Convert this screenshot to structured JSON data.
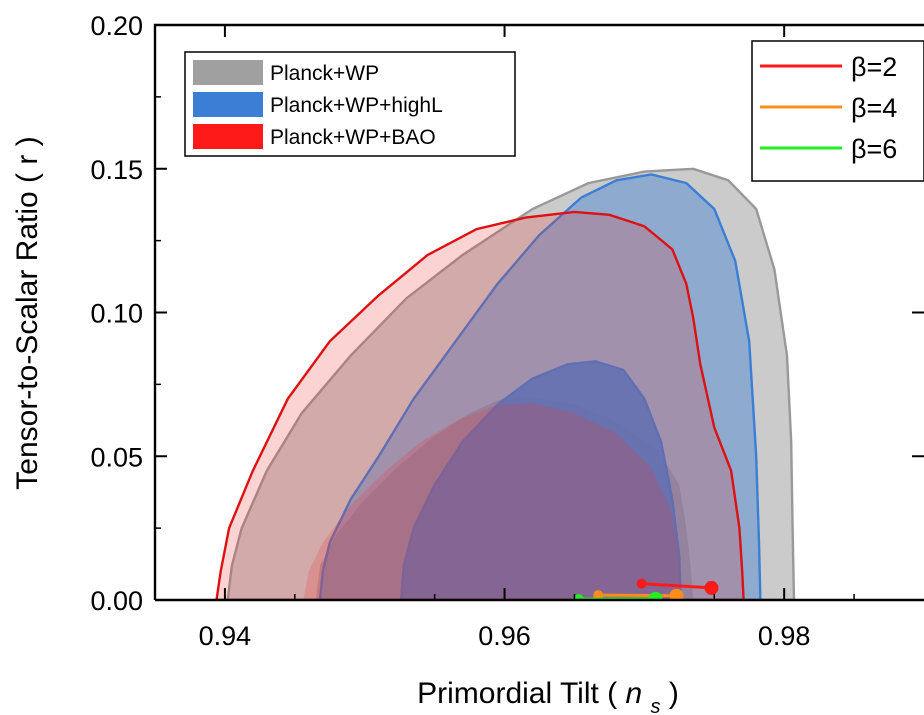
{
  "chart_data": {
    "type": "contour",
    "title": "",
    "xlabel": "Primordial Tilt",
    "xlabel_symbol": "n",
    "xlabel_subscript": "s",
    "ylabel": "Tensor-to-Scalar Ratio",
    "ylabel_symbol": "r",
    "xlim": [
      0.935,
      0.99
    ],
    "ylim": [
      0.0,
      0.2
    ],
    "xticks": [
      "0.94",
      "0.96",
      "0.98"
    ],
    "yticks": [
      "0.00",
      "0.05",
      "0.10",
      "0.15",
      "0.20"
    ],
    "grid": false,
    "contour_legend_position": "top-left",
    "model_legend_position": "top-right",
    "contours": [
      {
        "name": "Planck+WP",
        "color": "#a0a0a0",
        "edge": "#999999",
        "levels": [
          {
            "sigma": 2,
            "opacity": 0.55,
            "points": [
              [
                0.9402,
                0.0
              ],
              [
                0.9405,
                0.012
              ],
              [
                0.9412,
                0.025
              ],
              [
                0.943,
                0.045
              ],
              [
                0.9455,
                0.065
              ],
              [
                0.949,
                0.085
              ],
              [
                0.953,
                0.105
              ],
              [
                0.957,
                0.12
              ],
              [
                0.962,
                0.136
              ],
              [
                0.966,
                0.145
              ],
              [
                0.97,
                0.149
              ],
              [
                0.9735,
                0.15
              ],
              [
                0.976,
                0.146
              ],
              [
                0.978,
                0.136
              ],
              [
                0.9793,
                0.115
              ],
              [
                0.9802,
                0.085
              ],
              [
                0.9805,
                0.055
              ],
              [
                0.9806,
                0.025
              ],
              [
                0.9807,
                0.0
              ]
            ]
          },
          {
            "sigma": 1,
            "opacity": 0.75,
            "points": [
              [
                0.9465,
                0.0
              ],
              [
                0.9468,
                0.012
              ],
              [
                0.948,
                0.023
              ],
              [
                0.95,
                0.035
              ],
              [
                0.9525,
                0.047
              ],
              [
                0.955,
                0.057
              ],
              [
                0.9575,
                0.065
              ],
              [
                0.9598,
                0.07
              ],
              [
                0.962,
                0.0705
              ],
              [
                0.965,
                0.068
              ],
              [
                0.968,
                0.062
              ],
              [
                0.971,
                0.052
              ],
              [
                0.9725,
                0.04
              ],
              [
                0.973,
                0.025
              ],
              [
                0.9733,
                0.012
              ],
              [
                0.9735,
                0.0
              ]
            ]
          }
        ]
      },
      {
        "name": "Planck+WP+highL",
        "color": "#3a7fd5",
        "edge": "#3a7fd5",
        "levels": [
          {
            "sigma": 2,
            "opacity": 0.42,
            "points": [
              [
                0.9468,
                0.0
              ],
              [
                0.947,
                0.01
              ],
              [
                0.9475,
                0.02
              ],
              [
                0.949,
                0.035
              ],
              [
                0.951,
                0.05
              ],
              [
                0.9535,
                0.07
              ],
              [
                0.9565,
                0.09
              ],
              [
                0.9595,
                0.11
              ],
              [
                0.9625,
                0.127
              ],
              [
                0.9655,
                0.14
              ],
              [
                0.968,
                0.146
              ],
              [
                0.9705,
                0.148
              ],
              [
                0.973,
                0.145
              ],
              [
                0.975,
                0.136
              ],
              [
                0.9765,
                0.118
              ],
              [
                0.9775,
                0.09
              ],
              [
                0.978,
                0.05
              ],
              [
                0.9782,
                0.02
              ],
              [
                0.9783,
                0.0
              ]
            ]
          },
          {
            "sigma": 1,
            "opacity": 0.85,
            "points": [
              [
                0.9526,
                0.0
              ],
              [
                0.9528,
                0.012
              ],
              [
                0.9535,
                0.025
              ],
              [
                0.955,
                0.04
              ],
              [
                0.957,
                0.055
              ],
              [
                0.9595,
                0.068
              ],
              [
                0.962,
                0.077
              ],
              [
                0.9645,
                0.082
              ],
              [
                0.9665,
                0.083
              ],
              [
                0.9685,
                0.08
              ],
              [
                0.97,
                0.07
              ],
              [
                0.9712,
                0.055
              ],
              [
                0.972,
                0.035
              ],
              [
                0.9725,
                0.015
              ],
              [
                0.9726,
                0.0
              ]
            ]
          }
        ]
      },
      {
        "name": "Planck+WP+BAO",
        "color": "#ee3535",
        "edge": "#dd1111",
        "levels": [
          {
            "sigma": 2,
            "opacity": 0.22,
            "points": [
              [
                0.9394,
                0.0
              ],
              [
                0.9397,
                0.01
              ],
              [
                0.9403,
                0.025
              ],
              [
                0.942,
                0.045
              ],
              [
                0.9445,
                0.07
              ],
              [
                0.9475,
                0.09
              ],
              [
                0.951,
                0.106
              ],
              [
                0.9545,
                0.12
              ],
              [
                0.958,
                0.129
              ],
              [
                0.9615,
                0.133
              ],
              [
                0.965,
                0.135
              ],
              [
                0.9675,
                0.134
              ],
              [
                0.97,
                0.13
              ],
              [
                0.972,
                0.122
              ],
              [
                0.973,
                0.11
              ],
              [
                0.9735,
                0.098
              ],
              [
                0.974,
                0.082
              ],
              [
                0.975,
                0.06
              ],
              [
                0.9762,
                0.045
              ],
              [
                0.9768,
                0.025
              ],
              [
                0.977,
                0.01
              ],
              [
                0.9771,
                0.0
              ]
            ]
          },
          {
            "sigma": 1,
            "opacity": 0.22,
            "points": [
              [
                0.9456,
                0.0
              ],
              [
                0.946,
                0.01
              ],
              [
                0.947,
                0.02
              ],
              [
                0.949,
                0.033
              ],
              [
                0.9515,
                0.045
              ],
              [
                0.954,
                0.055
              ],
              [
                0.9568,
                0.063
              ],
              [
                0.9595,
                0.068
              ],
              [
                0.962,
                0.0685
              ],
              [
                0.965,
                0.065
              ],
              [
                0.968,
                0.058
              ],
              [
                0.9705,
                0.046
              ],
              [
                0.972,
                0.03
              ],
              [
                0.9725,
                0.015
              ],
              [
                0.9727,
                0.0
              ]
            ]
          }
        ]
      }
    ],
    "series": [
      {
        "name": "β=2",
        "color": "#ff1a1a",
        "x": [
          0.9698,
          0.9748
        ],
        "y": [
          0.0057,
          0.0042
        ]
      },
      {
        "name": "β=4",
        "color": "#ff8c1a",
        "x": [
          0.9667,
          0.9723
        ],
        "y": [
          0.0017,
          0.0015
        ]
      },
      {
        "name": "β=6",
        "color": "#22ee22",
        "x": [
          0.9653,
          0.9708
        ],
        "y": [
          0.0003,
          0.0004
        ]
      }
    ]
  }
}
